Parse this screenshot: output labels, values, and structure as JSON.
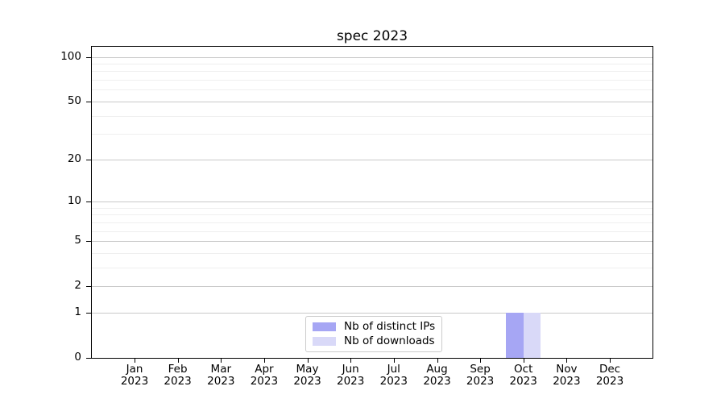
{
  "colors": {
    "background": "#ffffff",
    "spine": "#000000",
    "major_grid": "#c9c9c9",
    "minor_grid": "#efefef",
    "legend_border": "#cccccc",
    "text": "#000000"
  },
  "chart_data": {
    "type": "bar",
    "title": "spec 2023",
    "categories": [
      "Jan",
      "Feb",
      "Mar",
      "Apr",
      "May",
      "Jun",
      "Jul",
      "Aug",
      "Sep",
      "Oct",
      "Nov",
      "Dec"
    ],
    "x_year_label": "2023",
    "series": [
      {
        "name": "Nb of distinct IPs",
        "color": "#a6a6f4",
        "values": [
          0,
          0,
          0,
          0,
          0,
          0,
          0,
          0,
          0,
          1,
          0,
          0
        ]
      },
      {
        "name": "Nb of downloads",
        "color": "#d9d9f8",
        "values": [
          0,
          0,
          0,
          0,
          0,
          0,
          0,
          0,
          0,
          1,
          0,
          0
        ]
      }
    ],
    "xlabel": "",
    "ylabel": "",
    "y_axis": {
      "scale": "log1p",
      "ticks": [
        100,
        50,
        20,
        10,
        5,
        2,
        1,
        0
      ],
      "minor_ticks": [
        3,
        4,
        6,
        7,
        8,
        9,
        30,
        40,
        60,
        70,
        80,
        90
      ],
      "ylim": [
        0,
        117
      ]
    },
    "grid": true,
    "legend_position": "lower center"
  }
}
